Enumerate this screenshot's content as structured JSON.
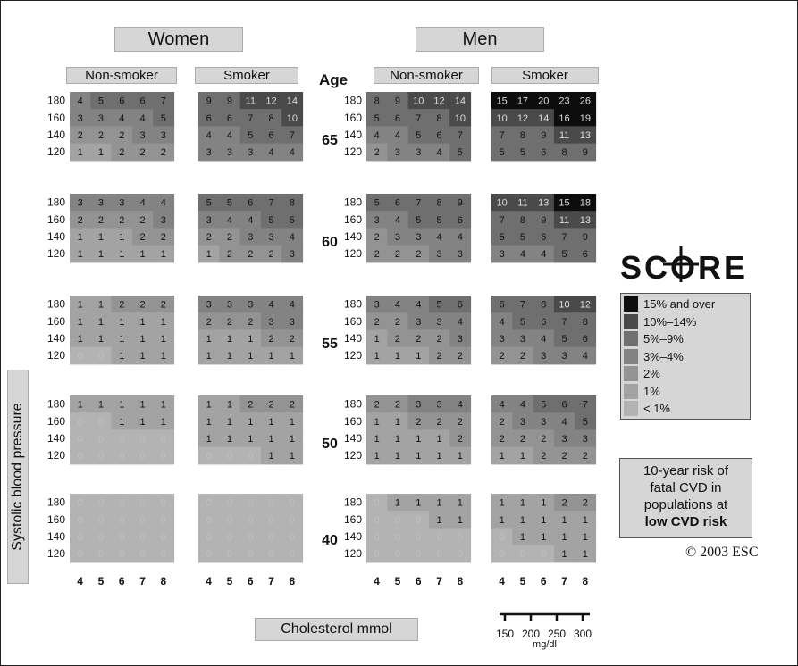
{
  "headers": {
    "women": "Women",
    "men": "Men",
    "non_smoker": "Non-smoker",
    "smoker": "Smoker",
    "age": "Age"
  },
  "score_logo": "SCORE",
  "legend": [
    {
      "label": "15% and over",
      "color": "#0d0d0d"
    },
    {
      "label": "10%–14%",
      "color": "#4a4a4a"
    },
    {
      "label": "5%–9%",
      "color": "#6f6f6f"
    },
    {
      "label": "3%–4%",
      "color": "#838383"
    },
    {
      "label": "2%",
      "color": "#939393"
    },
    {
      "label": "1%",
      "color": "#a3a3a3"
    },
    {
      "label": "< 1%",
      "color": "#b3b3b3"
    }
  ],
  "note": {
    "line1": "10-year risk of",
    "line2": "fatal CVD in",
    "line3": "populations at",
    "line4": "low CVD risk"
  },
  "copyright": "© 2003 ESC",
  "chart_data": {
    "type": "heatmap",
    "title": "SCORE",
    "ylabel": "Systolic blood pressure",
    "xlabel": "Cholesterol mmol",
    "secondary_x_label": "mg/dl",
    "secondary_x_ticks": [
      "150",
      "200",
      "250",
      "300"
    ],
    "cholesterol_ticks": [
      "4",
      "5",
      "6",
      "7",
      "8"
    ],
    "sbp_ticks": [
      "180",
      "160",
      "140",
      "120"
    ],
    "ages": [
      "65",
      "60",
      "55",
      "50",
      "40"
    ],
    "panels": [
      {
        "gender": "Women",
        "smoking": "Non-smoker",
        "grids": [
          [
            [
              4,
              5,
              6,
              6,
              7
            ],
            [
              3,
              3,
              4,
              4,
              5
            ],
            [
              2,
              2,
              2,
              3,
              3
            ],
            [
              1,
              1,
              2,
              2,
              2
            ]
          ],
          [
            [
              3,
              3,
              3,
              4,
              4
            ],
            [
              2,
              2,
              2,
              2,
              3
            ],
            [
              1,
              1,
              1,
              2,
              2
            ],
            [
              1,
              1,
              1,
              1,
              1
            ]
          ],
          [
            [
              1,
              1,
              2,
              2,
              2
            ],
            [
              1,
              1,
              1,
              1,
              1
            ],
            [
              1,
              1,
              1,
              1,
              1
            ],
            [
              0,
              0,
              1,
              1,
              1
            ]
          ],
          [
            [
              1,
              1,
              1,
              1,
              1
            ],
            [
              0,
              0,
              1,
              1,
              1
            ],
            [
              0,
              0,
              0,
              0,
              0
            ],
            [
              0,
              0,
              0,
              0,
              0
            ]
          ],
          [
            [
              0,
              0,
              0,
              0,
              0
            ],
            [
              0,
              0,
              0,
              0,
              0
            ],
            [
              0,
              0,
              0,
              0,
              0
            ],
            [
              0,
              0,
              0,
              0,
              0
            ]
          ]
        ]
      },
      {
        "gender": "Women",
        "smoking": "Smoker",
        "grids": [
          [
            [
              9,
              9,
              11,
              12,
              14
            ],
            [
              6,
              6,
              7,
              8,
              10
            ],
            [
              4,
              4,
              5,
              6,
              7
            ],
            [
              3,
              3,
              3,
              4,
              4
            ]
          ],
          [
            [
              5,
              5,
              6,
              7,
              8
            ],
            [
              3,
              4,
              4,
              5,
              5
            ],
            [
              2,
              2,
              3,
              3,
              4
            ],
            [
              1,
              2,
              2,
              2,
              3
            ]
          ],
          [
            [
              3,
              3,
              3,
              4,
              4
            ],
            [
              2,
              2,
              2,
              3,
              3
            ],
            [
              1,
              1,
              1,
              2,
              2
            ],
            [
              1,
              1,
              1,
              1,
              1
            ]
          ],
          [
            [
              1,
              1,
              2,
              2,
              2
            ],
            [
              1,
              1,
              1,
              1,
              1
            ],
            [
              1,
              1,
              1,
              1,
              1
            ],
            [
              0,
              0,
              0,
              1,
              1
            ]
          ],
          [
            [
              0,
              0,
              0,
              0,
              0
            ],
            [
              0,
              0,
              0,
              0,
              0
            ],
            [
              0,
              0,
              0,
              0,
              0
            ],
            [
              0,
              0,
              0,
              0,
              0
            ]
          ]
        ]
      },
      {
        "gender": "Men",
        "smoking": "Non-smoker",
        "grids": [
          [
            [
              8,
              9,
              10,
              12,
              14
            ],
            [
              5,
              6,
              7,
              8,
              10
            ],
            [
              4,
              4,
              5,
              6,
              7
            ],
            [
              2,
              3,
              3,
              4,
              5
            ]
          ],
          [
            [
              5,
              6,
              7,
              8,
              9
            ],
            [
              3,
              4,
              5,
              5,
              6
            ],
            [
              2,
              3,
              3,
              4,
              4
            ],
            [
              2,
              2,
              2,
              3,
              3
            ]
          ],
          [
            [
              3,
              4,
              4,
              5,
              6
            ],
            [
              2,
              2,
              3,
              3,
              4
            ],
            [
              1,
              2,
              2,
              2,
              3
            ],
            [
              1,
              1,
              1,
              2,
              2
            ]
          ],
          [
            [
              2,
              2,
              3,
              3,
              4
            ],
            [
              1,
              1,
              2,
              2,
              2
            ],
            [
              1,
              1,
              1,
              1,
              2
            ],
            [
              1,
              1,
              1,
              1,
              1
            ]
          ],
          [
            [
              0,
              1,
              1,
              1,
              1
            ],
            [
              0,
              0,
              0,
              1,
              1
            ],
            [
              0,
              0,
              0,
              0,
              0
            ],
            [
              0,
              0,
              0,
              0,
              0
            ]
          ]
        ]
      },
      {
        "gender": "Men",
        "smoking": "Smoker",
        "grids": [
          [
            [
              15,
              17,
              20,
              23,
              26
            ],
            [
              10,
              12,
              14,
              16,
              19
            ],
            [
              7,
              8,
              9,
              11,
              13
            ],
            [
              5,
              5,
              6,
              8,
              9
            ]
          ],
          [
            [
              10,
              11,
              13,
              15,
              18
            ],
            [
              7,
              8,
              9,
              11,
              13
            ],
            [
              5,
              5,
              6,
              7,
              9
            ],
            [
              3,
              4,
              4,
              5,
              6
            ]
          ],
          [
            [
              6,
              7,
              8,
              10,
              12
            ],
            [
              4,
              5,
              6,
              7,
              8
            ],
            [
              3,
              3,
              4,
              5,
              6
            ],
            [
              2,
              2,
              3,
              3,
              4
            ]
          ],
          [
            [
              4,
              4,
              5,
              6,
              7
            ],
            [
              2,
              3,
              3,
              4,
              5
            ],
            [
              2,
              2,
              2,
              3,
              3
            ],
            [
              1,
              1,
              2,
              2,
              2
            ]
          ],
          [
            [
              1,
              1,
              1,
              2,
              2
            ],
            [
              1,
              1,
              1,
              1,
              1
            ],
            [
              0,
              1,
              1,
              1,
              1
            ],
            [
              0,
              0,
              0,
              1,
              1
            ]
          ]
        ]
      }
    ]
  }
}
